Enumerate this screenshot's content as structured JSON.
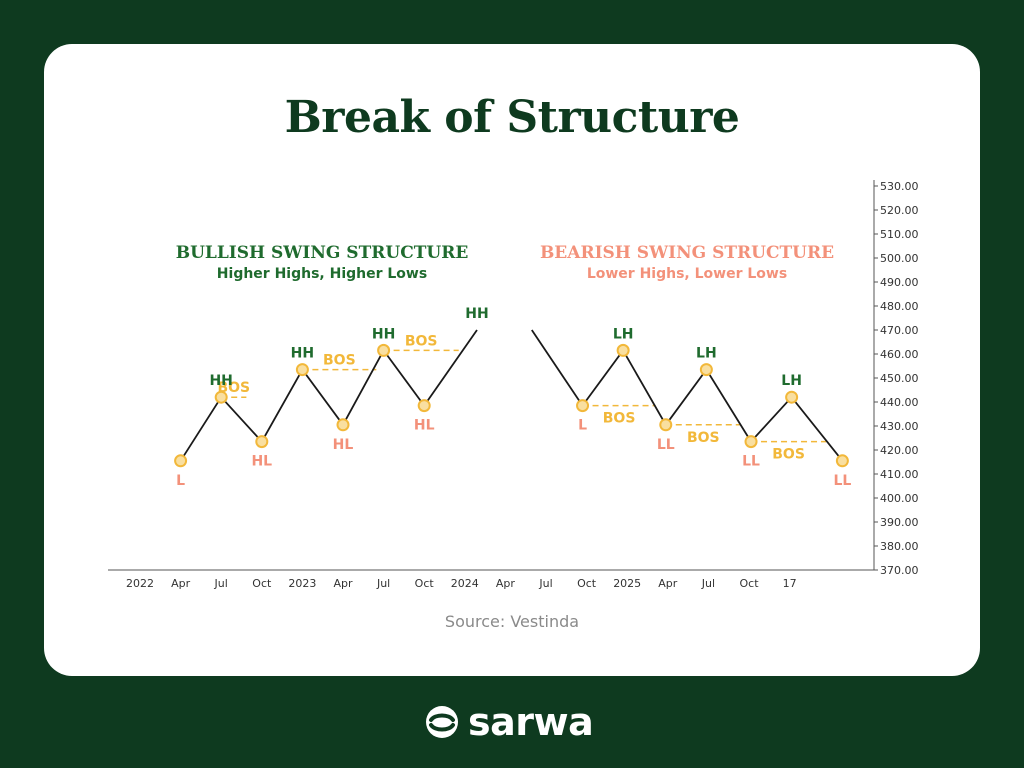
{
  "title": "Break of Structure",
  "source": "Source: Vestinda",
  "brand": "sarwa",
  "colors": {
    "background": "#0e3a1f",
    "card": "#ffffff",
    "green": "#1f6b2e",
    "salmon": "#f3917a",
    "gold": "#f2b83a",
    "line": "#1a1a1a",
    "axis": "#555555"
  },
  "chart_data": {
    "type": "line",
    "title": "Break of Structure",
    "ylim": [
      370,
      530
    ],
    "y_ticks": [
      "370.00",
      "380.00",
      "390.00",
      "400.00",
      "410.00",
      "420.00",
      "430.00",
      "440.00",
      "450.00",
      "460.00",
      "470.00",
      "480.00",
      "490.00",
      "500.00",
      "510.00",
      "520.00",
      "530.00"
    ],
    "x_ticks": [
      "2022",
      "Apr",
      "Jul",
      "Oct",
      "2023",
      "Apr",
      "Jul",
      "Oct",
      "2024",
      "Apr",
      "Jul",
      "Oct",
      "2025",
      "Apr",
      "Jul",
      "Oct",
      "17"
    ],
    "sections": [
      {
        "name": "bullish",
        "heading": "BULLISH SWING STRUCTURE",
        "subheading": "Higher Highs, Higher Lows",
        "points": [
          {
            "x": 1.0,
            "y": 415.5,
            "label": "L",
            "kind": "low",
            "marker": true
          },
          {
            "x": 2.0,
            "y": 442,
            "label": "HH",
            "kind": "high",
            "marker": true
          },
          {
            "x": 3.0,
            "y": 423.5,
            "label": "HL",
            "kind": "low",
            "marker": true
          },
          {
            "x": 4.0,
            "y": 453.5,
            "label": "HH",
            "kind": "high",
            "marker": true
          },
          {
            "x": 5.0,
            "y": 430.5,
            "label": "HL",
            "kind": "low",
            "marker": true
          },
          {
            "x": 6.0,
            "y": 461.5,
            "label": "HH",
            "kind": "high",
            "marker": true
          },
          {
            "x": 7.0,
            "y": 438.5,
            "label": "HL",
            "kind": "low",
            "marker": true
          },
          {
            "x": 8.3,
            "y": 470,
            "label": "HH",
            "kind": "high",
            "marker": false
          }
        ],
        "bos": [
          {
            "from_x": 2.0,
            "to_x": 2.62,
            "y": 442,
            "label": "BOS"
          },
          {
            "from_x": 4.0,
            "to_x": 5.82,
            "y": 453.5,
            "label": "BOS"
          },
          {
            "from_x": 6.0,
            "to_x": 7.85,
            "y": 461.5,
            "label": "BOS"
          }
        ]
      },
      {
        "name": "bearish",
        "heading": "BEARISH SWING STRUCTURE",
        "subheading": "Lower Highs, Lower Lows",
        "points": [
          {
            "x": 9.65,
            "y": 470,
            "label": "",
            "kind": "start",
            "marker": false
          },
          {
            "x": 10.9,
            "y": 438.5,
            "label": "L",
            "kind": "low",
            "marker": true
          },
          {
            "x": 11.9,
            "y": 461.5,
            "label": "LH",
            "kind": "high",
            "marker": true
          },
          {
            "x": 12.95,
            "y": 430.5,
            "label": "LL",
            "kind": "low",
            "marker": true
          },
          {
            "x": 13.95,
            "y": 453.5,
            "label": "LH",
            "kind": "high",
            "marker": true
          },
          {
            "x": 15.05,
            "y": 423.5,
            "label": "LL",
            "kind": "low",
            "marker": true
          },
          {
            "x": 16.05,
            "y": 442,
            "label": "LH",
            "kind": "high",
            "marker": true
          },
          {
            "x": 17.3,
            "y": 415.5,
            "label": "LL",
            "kind": "low",
            "marker": true
          }
        ],
        "bos": [
          {
            "from_x": 10.9,
            "to_x": 12.7,
            "y": 438.5,
            "label": "BOS"
          },
          {
            "from_x": 12.95,
            "to_x": 14.8,
            "y": 430.5,
            "label": "BOS"
          },
          {
            "from_x": 15.05,
            "to_x": 16.9,
            "y": 423.5,
            "label": "BOS"
          }
        ]
      }
    ]
  }
}
